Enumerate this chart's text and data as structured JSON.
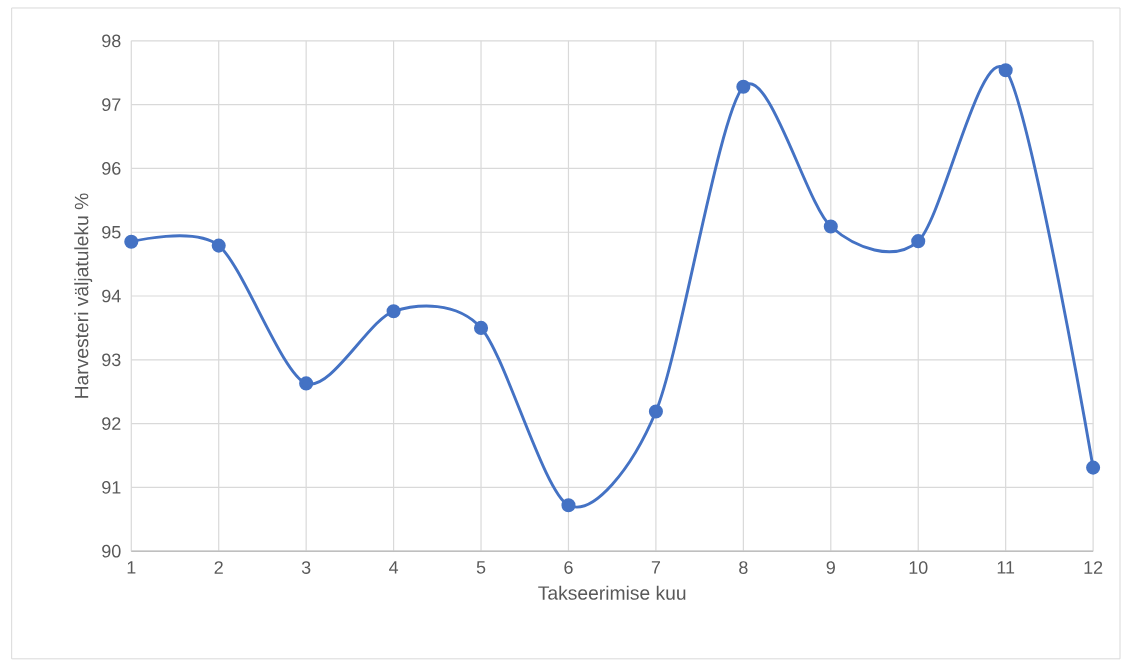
{
  "chart_data": {
    "type": "line",
    "xlabel": "Takseerimise kuu",
    "ylabel": "Harvesteri väljatuleku %",
    "x": [
      1,
      2,
      3,
      4,
      5,
      6,
      7,
      8,
      9,
      10,
      11,
      12
    ],
    "series": [
      {
        "color": "#4472c4",
        "values": [
          94.85,
          94.79,
          92.63,
          93.76,
          93.5,
          90.72,
          92.19,
          97.28,
          95.09,
          94.86,
          97.54,
          91.31
        ]
      }
    ],
    "xlim": [
      1,
      12
    ],
    "xticks": [
      1,
      2,
      3,
      4,
      5,
      6,
      7,
      8,
      9,
      10,
      11,
      12
    ],
    "ylim": [
      90,
      98
    ],
    "yticks": [
      90,
      91,
      92,
      93,
      94,
      95,
      96,
      97,
      98
    ],
    "grid": true,
    "marker": "circle",
    "line_style": "solid"
  }
}
